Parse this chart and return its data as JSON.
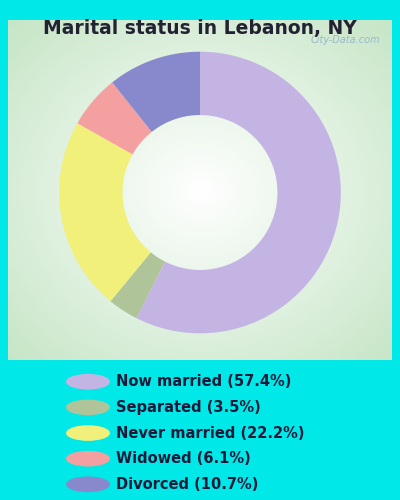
{
  "title": "Marital status in Lebanon, NY",
  "slices": [
    {
      "label": "Now married (57.4%)",
      "value": 57.4,
      "color": "#c4b4e4"
    },
    {
      "label": "Separated (3.5%)",
      "value": 3.5,
      "color": "#b0c49a"
    },
    {
      "label": "Never married (22.2%)",
      "value": 22.2,
      "color": "#f0f07a"
    },
    {
      "label": "Widowed (6.1%)",
      "value": 6.1,
      "color": "#f4a0a0"
    },
    {
      "label": "Divorced (10.7%)",
      "value": 10.7,
      "color": "#8888cc"
    }
  ],
  "bg_outer": "#00e8e8",
  "bg_chart_corners": "#c8e8c8",
  "watermark": "City-Data.com",
  "title_fontsize": 13.5,
  "legend_fontsize": 10.5,
  "title_color": "#222233"
}
